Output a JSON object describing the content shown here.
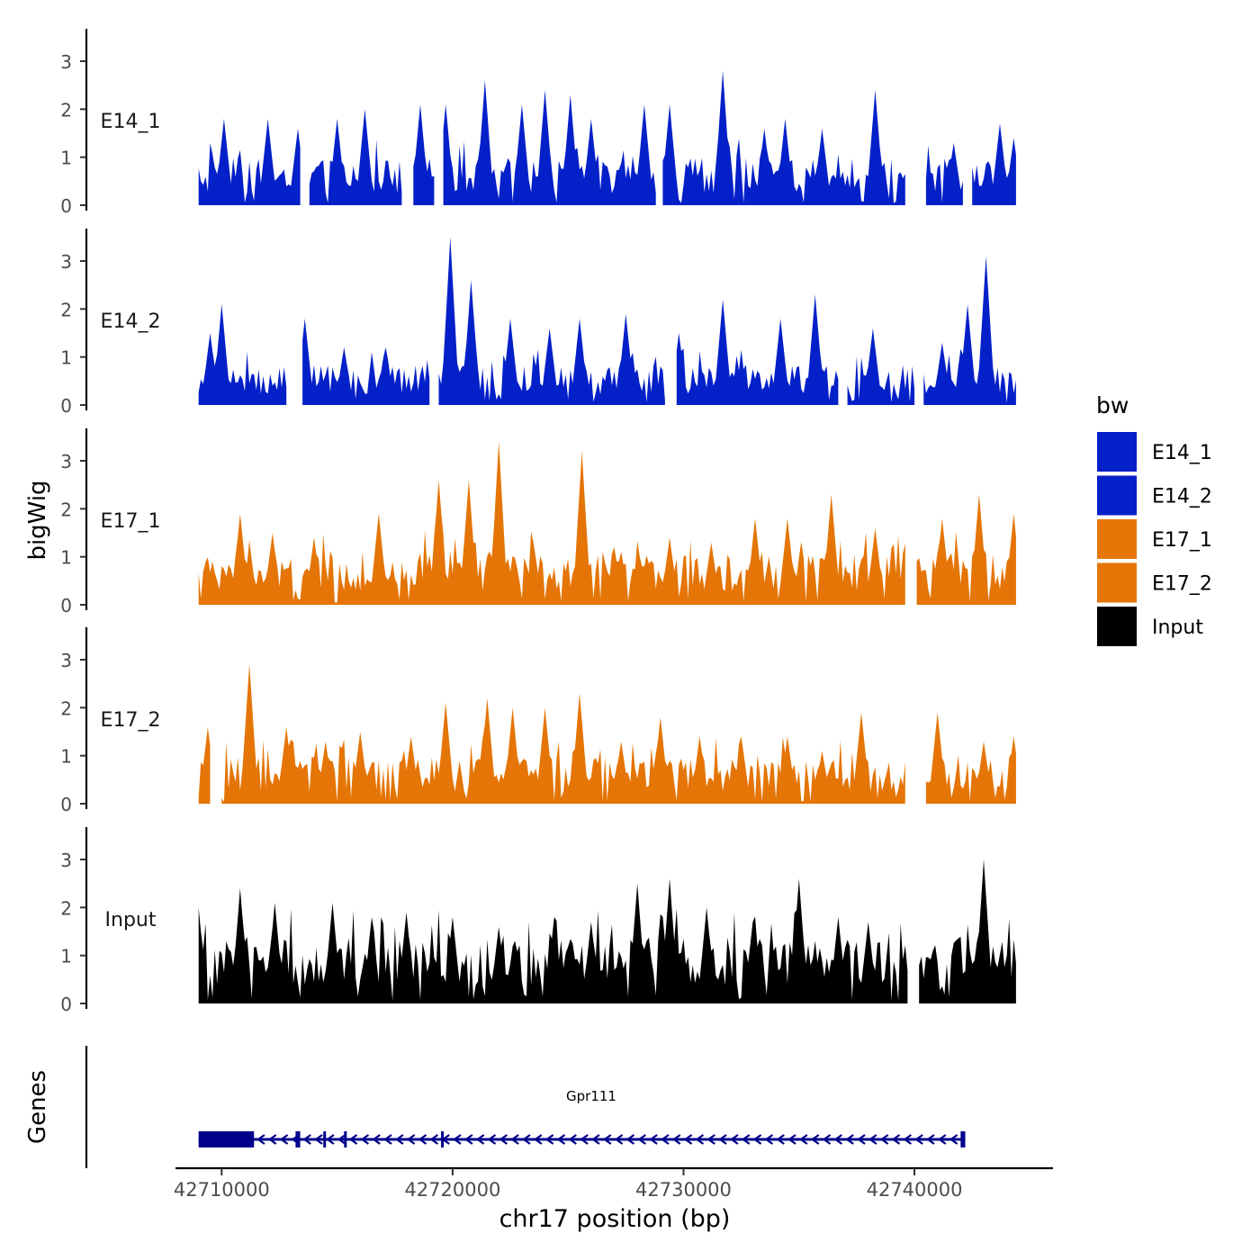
{
  "chart_data": {
    "type": "area",
    "title": "",
    "ylabel": "bigWig",
    "xlabel": "chr17 position (bp)",
    "genes_label": "Genes",
    "xlim": [
      42708000,
      42746000
    ],
    "x_ticks": [
      42710000,
      42720000,
      42730000,
      42740000
    ],
    "x_tick_labels": [
      "42710000",
      "42720000",
      "42730000",
      "42740000"
    ],
    "ylim": [
      0,
      3.6
    ],
    "y_ticks": [
      0,
      1,
      2,
      3
    ],
    "y_tick_labels": [
      "0",
      "1",
      "2",
      "3"
    ],
    "legend": {
      "title": "bw",
      "placement": "right",
      "entries": [
        {
          "label": "E14_1",
          "color": "#0420C8"
        },
        {
          "label": "E14_2",
          "color": "#0420C8"
        },
        {
          "label": "E17_1",
          "color": "#E47506"
        },
        {
          "label": "E17_2",
          "color": "#E47506"
        },
        {
          "label": "Input",
          "color": "#000000"
        }
      ]
    },
    "series": [
      {
        "name": "E14_1",
        "color": "#0420C8",
        "gaps": [
          [
            42713500,
            42713700
          ],
          [
            42717900,
            42718200
          ],
          [
            42719300,
            42719500
          ],
          [
            42728900,
            42729000
          ],
          [
            42739700,
            42740400
          ],
          [
            42742200,
            42742400
          ]
        ],
        "peaks": [
          [
            42710100,
            1.8
          ],
          [
            42712000,
            1.8
          ],
          [
            42713300,
            1.6
          ],
          [
            42715000,
            1.8
          ],
          [
            42716200,
            2.0
          ],
          [
            42718600,
            2.1
          ],
          [
            42719700,
            2.1
          ],
          [
            42721400,
            2.6
          ],
          [
            42723000,
            2.1
          ],
          [
            42724000,
            2.4
          ],
          [
            42725100,
            2.3
          ],
          [
            42726000,
            1.8
          ],
          [
            42728300,
            2.1
          ],
          [
            42729400,
            2.1
          ],
          [
            42731700,
            2.8
          ],
          [
            42733500,
            1.6
          ],
          [
            42734400,
            1.8
          ],
          [
            42736000,
            1.6
          ],
          [
            42738300,
            2.4
          ],
          [
            42741700,
            1.3
          ],
          [
            42743700,
            1.7
          ],
          [
            42744300,
            1.4
          ]
        ],
        "baseline": 0.7
      },
      {
        "name": "E14_2",
        "color": "#0420C8",
        "gaps": [
          [
            42712900,
            42713400
          ],
          [
            42719100,
            42719300
          ],
          [
            42729300,
            42729600
          ],
          [
            42736800,
            42737000
          ],
          [
            42740100,
            42740300
          ]
        ],
        "peaks": [
          [
            42709500,
            1.5
          ],
          [
            42710000,
            2.1
          ],
          [
            42713600,
            1.8
          ],
          [
            42715300,
            1.2
          ],
          [
            42717100,
            1.2
          ],
          [
            42719900,
            3.5
          ],
          [
            42720800,
            2.6
          ],
          [
            42722500,
            1.8
          ],
          [
            42724200,
            1.6
          ],
          [
            42725500,
            1.8
          ],
          [
            42727500,
            1.9
          ],
          [
            42729800,
            1.5
          ],
          [
            42731700,
            2.2
          ],
          [
            42734200,
            1.8
          ],
          [
            42735700,
            2.3
          ],
          [
            42738200,
            1.6
          ],
          [
            42741200,
            1.3
          ],
          [
            42742300,
            2.1
          ],
          [
            42743100,
            3.1
          ]
        ],
        "baseline": 0.6
      },
      {
        "name": "E17_1",
        "color": "#E47506",
        "gaps": [
          [
            42739700,
            42740000
          ]
        ],
        "peaks": [
          [
            42709600,
            0.9
          ],
          [
            42710800,
            1.9
          ],
          [
            42712200,
            1.5
          ],
          [
            42714000,
            1.4
          ],
          [
            42716800,
            1.9
          ],
          [
            42719400,
            2.6
          ],
          [
            42720700,
            2.6
          ],
          [
            42722000,
            3.4
          ],
          [
            42723500,
            1.3
          ],
          [
            42725600,
            3.2
          ],
          [
            42727000,
            1.2
          ],
          [
            42729400,
            1.4
          ],
          [
            42731200,
            1.3
          ],
          [
            42733100,
            1.8
          ],
          [
            42734500,
            1.8
          ],
          [
            42736400,
            2.3
          ],
          [
            42738300,
            1.6
          ],
          [
            42741200,
            1.8
          ],
          [
            42742800,
            2.3
          ],
          [
            42744300,
            1.9
          ]
        ],
        "baseline": 0.8
      },
      {
        "name": "E17_2",
        "color": "#E47506",
        "gaps": [
          [
            42709600,
            42709900
          ],
          [
            42739700,
            42740400
          ]
        ],
        "peaks": [
          [
            42709400,
            1.6
          ],
          [
            42711200,
            2.9
          ],
          [
            42712800,
            1.6
          ],
          [
            42714500,
            1.3
          ],
          [
            42716000,
            1.5
          ],
          [
            42718200,
            1.4
          ],
          [
            42719700,
            2.1
          ],
          [
            42721500,
            2.2
          ],
          [
            42722600,
            2.0
          ],
          [
            42724000,
            2.0
          ],
          [
            42725500,
            2.3
          ],
          [
            42727300,
            1.3
          ],
          [
            42729000,
            1.8
          ],
          [
            42730700,
            1.4
          ],
          [
            42732500,
            1.4
          ],
          [
            42734500,
            1.4
          ],
          [
            42736000,
            1.1
          ],
          [
            42737700,
            1.9
          ],
          [
            42741000,
            1.9
          ],
          [
            42743000,
            1.3
          ],
          [
            42744300,
            1.4
          ]
        ],
        "baseline": 0.7
      },
      {
        "name": "Input",
        "color": "#000000",
        "gaps": [
          [
            42739800,
            42740100
          ]
        ],
        "peaks": [
          [
            42709000,
            2.0
          ],
          [
            42710800,
            2.4
          ],
          [
            42712300,
            2.1
          ],
          [
            42714800,
            2.1
          ],
          [
            42716500,
            1.8
          ],
          [
            42718000,
            1.9
          ],
          [
            42720000,
            1.8
          ],
          [
            42722000,
            1.6
          ],
          [
            42724400,
            1.8
          ],
          [
            42726000,
            1.7
          ],
          [
            42728000,
            2.5
          ],
          [
            42729400,
            2.6
          ],
          [
            42731000,
            2.0
          ],
          [
            42733000,
            1.7
          ],
          [
            42735000,
            2.6
          ],
          [
            42736700,
            1.8
          ],
          [
            42738000,
            1.7
          ],
          [
            42740800,
            1.1
          ],
          [
            42742400,
            1.1
          ],
          [
            42743000,
            3.0
          ],
          [
            42744000,
            1.0
          ]
        ],
        "baseline": 1.0
      }
    ],
    "gene_track": {
      "gene_name": "Gpr111",
      "color": "#00008B",
      "start": 42709000,
      "end": 42742200,
      "strand": "-",
      "exons": [
        [
          42709000,
          42711400
        ],
        [
          42713200,
          42713400
        ],
        [
          42714400,
          42714500
        ],
        [
          42715300,
          42715400
        ],
        [
          42719500,
          42719600
        ],
        [
          42742000,
          42742200
        ]
      ]
    }
  }
}
